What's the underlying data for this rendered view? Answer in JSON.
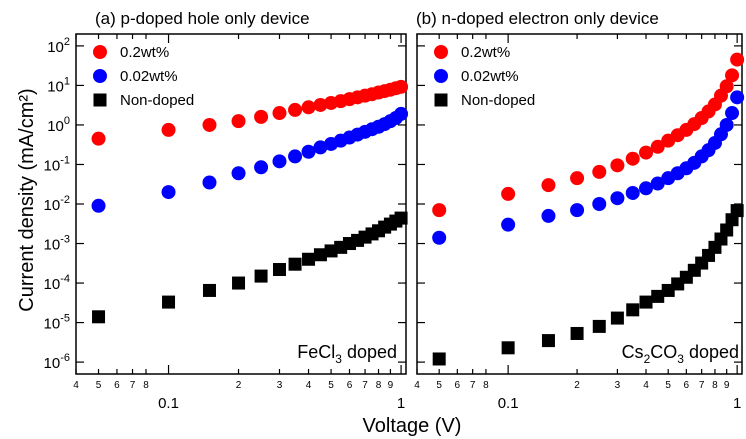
{
  "figure": {
    "ylabel": "Current density (mA/cm²)",
    "xlabel": "Voltage (V)"
  },
  "chart_data": [
    {
      "type": "scatter",
      "title": "(a) p-doped hole only device",
      "annotation": "FeCl3 doped",
      "xscale": "log",
      "yscale": "log",
      "xlim": [
        0.04,
        1.05
      ],
      "ylim": [
        5e-07,
        200
      ],
      "xticks": [
        {
          "v": 0.04,
          "label": "4"
        },
        {
          "v": 0.05,
          "label": "5"
        },
        {
          "v": 0.06,
          "label": "6"
        },
        {
          "v": 0.07,
          "label": "7"
        },
        {
          "v": 0.08,
          "label": "8"
        },
        {
          "v": 0.1,
          "label": "0.1"
        },
        {
          "v": 0.2,
          "label": "2"
        },
        {
          "v": 0.3,
          "label": "3"
        },
        {
          "v": 0.4,
          "label": "4"
        },
        {
          "v": 0.5,
          "label": "5"
        },
        {
          "v": 0.6,
          "label": "6"
        },
        {
          "v": 0.7,
          "label": "7"
        },
        {
          "v": 0.8,
          "label": "8"
        },
        {
          "v": 0.9,
          "label": "9"
        },
        {
          "v": 1.0,
          "label": "1"
        }
      ],
      "yticks": [
        {
          "v": 1e-06,
          "exp": "-6"
        },
        {
          "v": 1e-05,
          "exp": "-5"
        },
        {
          "v": 0.0001,
          "exp": "-4"
        },
        {
          "v": 0.001,
          "exp": "-3"
        },
        {
          "v": 0.01,
          "exp": "-2"
        },
        {
          "v": 0.1,
          "exp": "-1"
        },
        {
          "v": 1,
          "exp": "0"
        },
        {
          "v": 10,
          "exp": "1"
        },
        {
          "v": 100,
          "exp": "2"
        }
      ],
      "legend_placement": "top-left",
      "series": [
        {
          "name": "0.2wt%",
          "color": "#ff0000",
          "marker": "circle",
          "x": [
            0.05,
            0.1,
            0.15,
            0.2,
            0.25,
            0.3,
            0.35,
            0.4,
            0.45,
            0.5,
            0.55,
            0.6,
            0.65,
            0.7,
            0.75,
            0.8,
            0.85,
            0.9,
            0.95,
            1.0
          ],
          "y": [
            0.45,
            0.75,
            1.0,
            1.25,
            1.6,
            2.0,
            2.4,
            2.8,
            3.2,
            3.6,
            4.0,
            4.5,
            5.0,
            5.5,
            6.0,
            6.6,
            7.2,
            7.8,
            8.5,
            9.2
          ]
        },
        {
          "name": "0.02wt%",
          "color": "#0000ff",
          "marker": "circle",
          "x": [
            0.05,
            0.1,
            0.15,
            0.2,
            0.25,
            0.3,
            0.35,
            0.4,
            0.45,
            0.5,
            0.55,
            0.6,
            0.65,
            0.7,
            0.75,
            0.8,
            0.85,
            0.9,
            0.95,
            1.0
          ],
          "y": [
            0.009,
            0.02,
            0.035,
            0.06,
            0.085,
            0.12,
            0.16,
            0.21,
            0.27,
            0.33,
            0.4,
            0.48,
            0.57,
            0.67,
            0.78,
            0.9,
            1.05,
            1.25,
            1.5,
            1.9
          ]
        },
        {
          "name": "Non-doped",
          "color": "#000000",
          "marker": "square",
          "x": [
            0.05,
            0.1,
            0.15,
            0.2,
            0.25,
            0.3,
            0.35,
            0.4,
            0.45,
            0.5,
            0.55,
            0.6,
            0.65,
            0.7,
            0.75,
            0.8,
            0.85,
            0.9,
            0.95,
            1.0
          ],
          "y": [
            1.4e-05,
            3.3e-05,
            6.5e-05,
            0.0001,
            0.00015,
            0.00022,
            0.0003,
            0.0004,
            0.00052,
            0.00065,
            0.0008,
            0.001,
            0.0012,
            0.00145,
            0.00175,
            0.0021,
            0.0026,
            0.0031,
            0.0037,
            0.0044
          ]
        }
      ]
    },
    {
      "type": "scatter",
      "title": "(b) n-doped electron only device",
      "annotation": "Cs2CO3 doped",
      "xscale": "log",
      "yscale": "log",
      "xlim": [
        0.04,
        1.05
      ],
      "ylim": [
        5e-07,
        200
      ],
      "xticks": [
        {
          "v": 0.04,
          "label": "4"
        },
        {
          "v": 0.05,
          "label": "5"
        },
        {
          "v": 0.06,
          "label": "6"
        },
        {
          "v": 0.07,
          "label": "7"
        },
        {
          "v": 0.08,
          "label": "8"
        },
        {
          "v": 0.1,
          "label": "0.1"
        },
        {
          "v": 0.2,
          "label": "2"
        },
        {
          "v": 0.3,
          "label": "3"
        },
        {
          "v": 0.4,
          "label": "4"
        },
        {
          "v": 0.5,
          "label": "5"
        },
        {
          "v": 0.6,
          "label": "6"
        },
        {
          "v": 0.7,
          "label": "7"
        },
        {
          "v": 0.8,
          "label": "8"
        },
        {
          "v": 0.9,
          "label": "9"
        },
        {
          "v": 1.0,
          "label": "1"
        }
      ],
      "yticks": [
        {
          "v": 1e-06
        },
        {
          "v": 1e-05
        },
        {
          "v": 0.0001
        },
        {
          "v": 0.001
        },
        {
          "v": 0.01
        },
        {
          "v": 0.1
        },
        {
          "v": 1
        },
        {
          "v": 10
        },
        {
          "v": 100
        }
      ],
      "legend_placement": "top-left",
      "series": [
        {
          "name": "0.2wt%",
          "color": "#ff0000",
          "marker": "circle",
          "x": [
            0.05,
            0.1,
            0.15,
            0.2,
            0.25,
            0.3,
            0.35,
            0.4,
            0.45,
            0.5,
            0.55,
            0.6,
            0.65,
            0.7,
            0.75,
            0.8,
            0.85,
            0.9,
            0.95,
            1.0
          ],
          "y": [
            0.007,
            0.018,
            0.03,
            0.045,
            0.065,
            0.095,
            0.14,
            0.2,
            0.28,
            0.4,
            0.55,
            0.75,
            1.05,
            1.5,
            2.2,
            3.3,
            5.5,
            9.5,
            18,
            45
          ]
        },
        {
          "name": "0.02wt%",
          "color": "#0000ff",
          "marker": "circle",
          "x": [
            0.05,
            0.1,
            0.15,
            0.2,
            0.25,
            0.3,
            0.35,
            0.4,
            0.45,
            0.5,
            0.55,
            0.6,
            0.65,
            0.7,
            0.75,
            0.8,
            0.85,
            0.9,
            0.95,
            1.0
          ],
          "y": [
            0.0014,
            0.003,
            0.005,
            0.007,
            0.01,
            0.014,
            0.019,
            0.025,
            0.033,
            0.045,
            0.06,
            0.08,
            0.11,
            0.16,
            0.23,
            0.35,
            0.58,
            1.0,
            2.0,
            5.0
          ]
        },
        {
          "name": "Non-doped",
          "color": "#000000",
          "marker": "square",
          "x": [
            0.05,
            0.1,
            0.15,
            0.2,
            0.25,
            0.3,
            0.35,
            0.4,
            0.45,
            0.5,
            0.55,
            0.6,
            0.65,
            0.7,
            0.75,
            0.8,
            0.85,
            0.9,
            0.95,
            1.0
          ],
          "y": [
            1.2e-06,
            2.3e-06,
            3.5e-06,
            5.3e-06,
            8e-06,
            1.3e-05,
            2.1e-05,
            3.3e-05,
            4.6e-05,
            6.5e-05,
            9.5e-05,
            0.00014,
            0.00021,
            0.00032,
            0.0005,
            0.0008,
            0.0013,
            0.0022,
            0.004,
            0.0068
          ]
        }
      ]
    }
  ]
}
